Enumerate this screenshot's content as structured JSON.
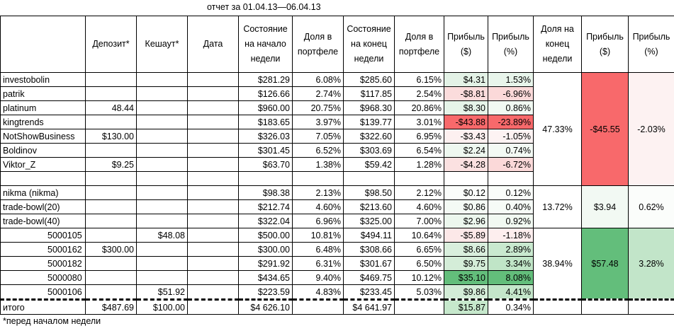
{
  "header": {
    "title": "отчет за  01.04.13—06.04.13"
  },
  "table": {
    "columns": [
      null,
      "Депозит*",
      "Кешаут*",
      "Дата",
      "Состояние на начало недели",
      "Доля в портфеле",
      "Состояние на конец недели",
      "Доля в портфеле",
      "Прибыль ($)",
      "Прибыль (%)",
      "Доля  на конец недели",
      "Прибыль ($)",
      "Прибыль (%)"
    ],
    "rows": [
      [
        "investobolin",
        null,
        null,
        null,
        "$281.29",
        "6.08%",
        "$285.60",
        "6.15%",
        "$4.31",
        "1.53%"
      ],
      [
        "patrik",
        null,
        null,
        null,
        "$126.66",
        "2.74%",
        "$117.85",
        "2.54%",
        "-$8.81",
        "-6.96%"
      ],
      [
        "platinum",
        "48.44",
        null,
        null,
        "$960.00",
        "20.75%",
        "$968.30",
        "20.86%",
        "$8.30",
        "0.86%"
      ],
      [
        "kingtrends",
        null,
        null,
        null,
        "$183.65",
        "3.97%",
        "$139.77",
        "3.01%",
        "-$43.88",
        "-23.89%"
      ],
      [
        "NotShowBusiness",
        "$130.00",
        null,
        null,
        "$326.03",
        "7.05%",
        "$322.60",
        "6.95%",
        "-$3.43",
        "-1.05%"
      ],
      [
        "Boldinov",
        null,
        null,
        null,
        "$301.45",
        "6.52%",
        "$303.69",
        "6.54%",
        "$2.24",
        "0.74%"
      ],
      [
        "Viktor_Z",
        "$9.25",
        null,
        null,
        "$63.70",
        "1.38%",
        "$59.42",
        "1.28%",
        "-$4.28",
        "-6.72%"
      ],
      [
        null,
        null,
        null,
        null,
        null,
        null,
        null,
        null,
        null,
        null
      ],
      [
        "nikma (nikma)",
        null,
        null,
        null,
        "$98.38",
        "2.13%",
        "$98.50",
        "2.12%",
        "$0.12",
        "0.12%"
      ],
      [
        "trade-bowl(20)",
        null,
        null,
        null,
        "$212.74",
        "4.60%",
        "$213.60",
        "4.60%",
        "$0.86",
        "0.40%"
      ],
      [
        "trade-bowl(40)",
        null,
        null,
        null,
        "$322.04",
        "6.96%",
        "$325.00",
        "7.00%",
        "$2.96",
        "0.92%"
      ],
      [
        "5000105",
        null,
        "$48.08",
        null,
        "$500.00",
        "10.81%",
        "$494.11",
        "10.64%",
        "-$5.89",
        "-1.18%"
      ],
      [
        "5000162",
        "$300.00",
        null,
        null,
        "$300.00",
        "6.48%",
        "$308.66",
        "6.65%",
        "$8.66",
        "2.89%"
      ],
      [
        "5000182",
        null,
        null,
        null,
        "$291.92",
        "6.31%",
        "$301.67",
        "6.50%",
        "$9.75",
        "3.34%"
      ],
      [
        "5000080",
        null,
        null,
        null,
        "$434.65",
        "9.40%",
        "$469.75",
        "10.12%",
        "$35.10",
        "8.08%"
      ],
      [
        "5000106",
        null,
        "$51.92",
        null,
        "$223.59",
        "4.83%",
        "$233.45",
        "5.03%",
        "$9.86",
        "4.41%"
      ]
    ],
    "groups": [
      [
        "47.33%",
        "-$45.55",
        "-2.03%"
      ],
      [
        "13.72%",
        "$3.94",
        "0.62%"
      ],
      [
        "38.94%",
        "$57.48",
        "3.28%"
      ]
    ],
    "total": [
      "итого",
      "$487.69",
      "$100.00",
      null,
      "$4 626.10",
      null,
      "$4 641.97",
      null,
      "$15.87",
      "0.34%"
    ]
  },
  "footnote": "*перед началом недели"
}
